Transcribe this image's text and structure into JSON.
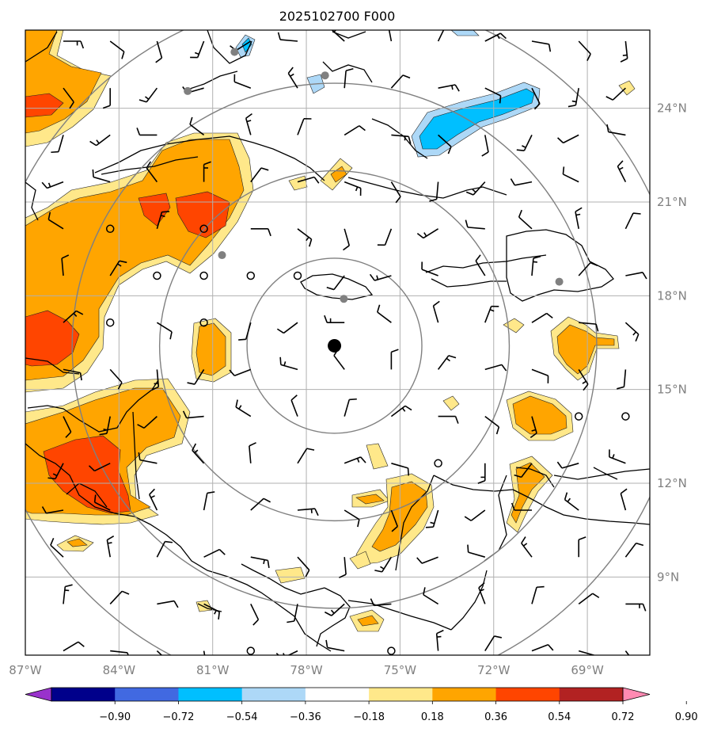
{
  "title": "2025102700 F000",
  "map": {
    "lon_range": [
      -87.0,
      -67.0
    ],
    "lat_range": [
      6.5,
      26.5
    ],
    "lon_ticks": [
      {
        "lon": -87,
        "label": "87°W"
      },
      {
        "lon": -84,
        "label": "84°W"
      },
      {
        "lon": -81,
        "label": "81°W"
      },
      {
        "lon": -78,
        "label": "78°W"
      },
      {
        "lon": -75,
        "label": "75°W"
      },
      {
        "lon": -72,
        "label": "72°W"
      },
      {
        "lon": -69,
        "label": "69°W"
      }
    ],
    "lat_ticks": [
      {
        "lat": 24,
        "label": "24°N"
      },
      {
        "lat": 21,
        "label": "21°N"
      },
      {
        "lat": 18,
        "label": "18°N"
      },
      {
        "lat": 15,
        "label": "15°N"
      },
      {
        "lat": 12,
        "label": "12°N"
      },
      {
        "lat": 9,
        "label": "9°N"
      }
    ],
    "center": {
      "lon": -77.1,
      "lat": 16.4
    },
    "range_rings_deg": [
      2.8,
      5.6,
      8.4,
      11.2
    ],
    "ring_color": "#808080",
    "grid_color": "#b0b0b0",
    "station_dots": [
      {
        "lon": -80.3,
        "lat": 25.8
      },
      {
        "lon": -81.8,
        "lat": 24.55
      },
      {
        "lon": -77.4,
        "lat": 25.05
      },
      {
        "lon": -80.7,
        "lat": 19.3
      },
      {
        "lon": -76.8,
        "lat": 17.9
      },
      {
        "lon": -69.9,
        "lat": 18.45
      }
    ],
    "station_dot_color": "#808080"
  },
  "colorbar": {
    "ticks": [
      "−0.90",
      "−0.72",
      "−0.54",
      "−0.36",
      "−0.18",
      "0.18",
      "0.36",
      "0.54",
      "0.72",
      "0.90"
    ],
    "colors": [
      "#9932cc",
      "#00008b",
      "#4169e1",
      "#00bfff",
      "#add8f7",
      "#ffffff",
      "#ffe88a",
      "#ffa500",
      "#ff4500",
      "#b22222",
      "#ff8ab2"
    ],
    "extend": "both"
  },
  "fields": {
    "positive_light": "#ffe88a",
    "positive_mid": "#ffa500",
    "positive_high": "#ff4500",
    "negative_light": "#add8f7",
    "negative_mid": "#00bfff"
  }
}
